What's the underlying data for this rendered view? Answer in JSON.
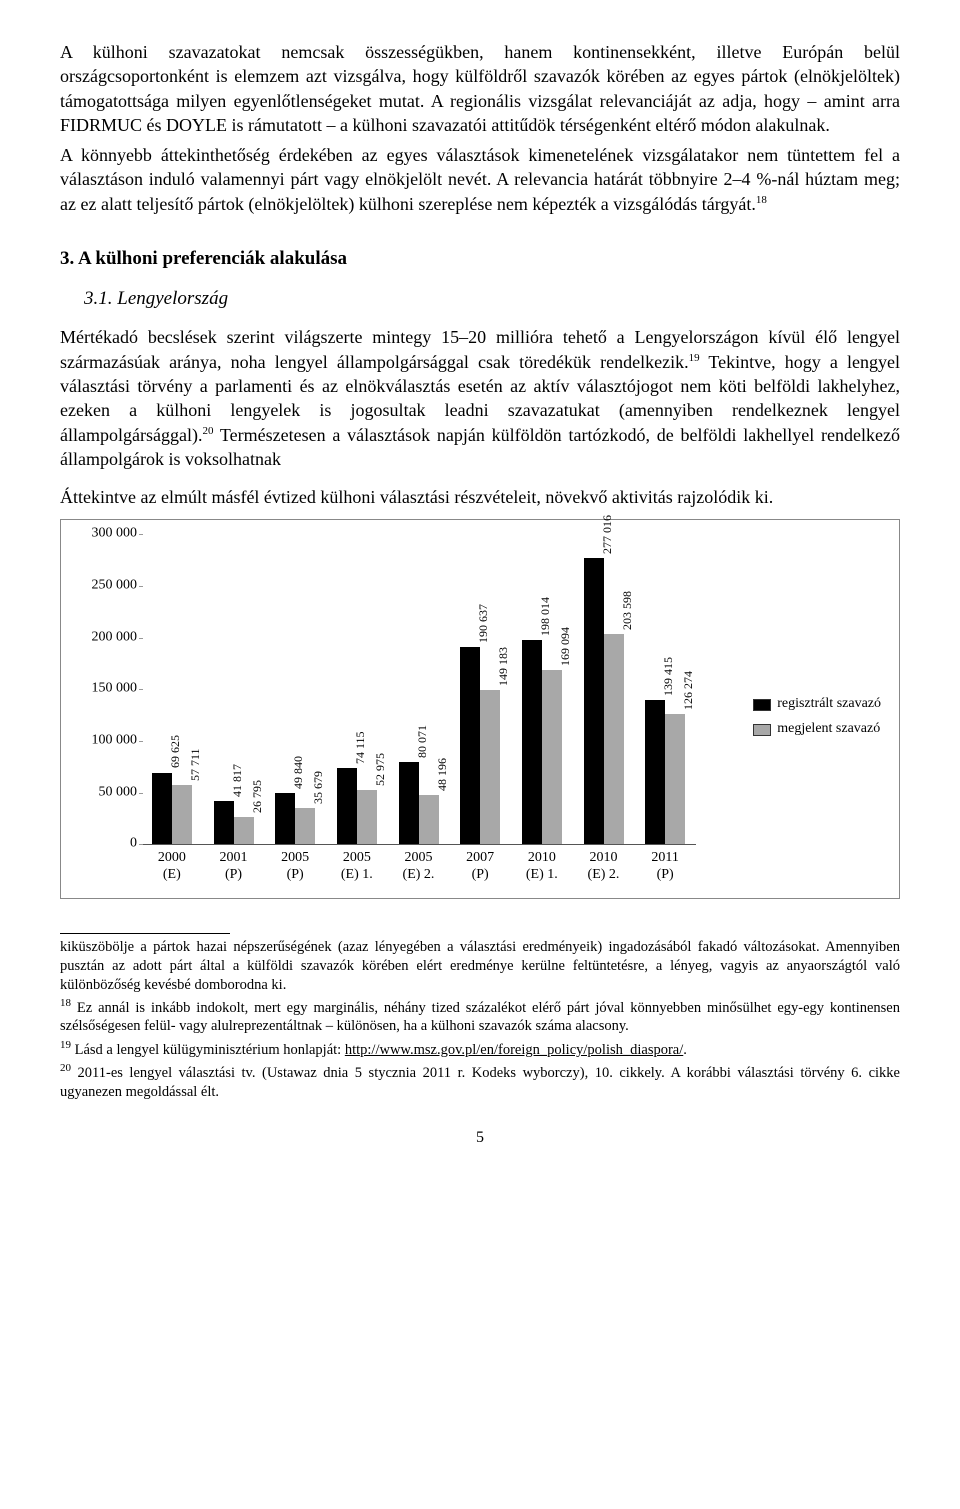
{
  "para1": "A külhoni szavazatokat nemcsak összességükben, hanem kontinensekként, illetve Európán belül országcsoportonként is elemzem azt vizsgálva, hogy külföldről szavazók körében az egyes pártok (elnökjelöltek) támogatottsága milyen egyenlőtlenségeket mutat. A regionális vizsgálat relevanciáját az adja, hogy – amint arra FIDRMUC és DOYLE is rámutatott – a külhoni szavazatói attitűdök térségenként eltérő módon alakulnak.",
  "para2_a": "A könnyebb áttekinthetőség érdekében az egyes választások kimenetelének vizsgálatakor nem tüntettem fel a választáson induló valamennyi párt vagy elnökjelölt nevét. A relevancia határát többnyire 2–4 %-nál húztam meg; az ez alatt teljesítő pártok (elnökjelöltek) külhoni szereplése nem képezték a vizsgálódás tárgyát.",
  "fn18_ref": "18",
  "h3": "3.  A külhoni preferenciák alakulása",
  "h4": "3.1. Lengyelország",
  "para3": "Mértékadó becslések szerint világszerte mintegy 15–20 millióra tehető a Lengyelországon kívül élő lengyel származásúak aránya, noha lengyel állampolgársággal csak töredékük rendelkezik.",
  "fn19_ref": "19",
  "para3b": " Tekintve, hogy a lengyel választási törvény a parlamenti és az elnökválasztás esetén az aktív választójogot nem köti belföldi lakhelyhez, ezeken a külhoni lengyelek is jogosultak leadni szavazatukat (amennyiben rendelkeznek lengyel állampolgársággal).",
  "fn20_ref": "20",
  "para3c": " Természetesen a választások napján külföldön tartózkodó, de belföldi lakhellyel rendelkező állampolgárok is voksolhatnak",
  "para4": "Áttekintve az elmúlt másfél évtized külhoni választási részvételeit, növekvő aktivitás rajzolódik ki.",
  "chart": {
    "y_ticks": [
      "0",
      "50 000",
      "100 000",
      "150 000",
      "200 000",
      "250 000",
      "300 000"
    ],
    "y_max": 300000,
    "categories": [
      "2000\n(E)",
      "2001\n(P)",
      "2005\n(P)",
      "2005\n(E) 1.",
      "2005\n(E) 2.",
      "2007\n(P)",
      "2010\n(E) 1.",
      "2010\n(E) 2.",
      "2011\n(P)"
    ],
    "series": [
      {
        "name": "regisztrált szavazó",
        "color": "#000000",
        "values": [
          69625,
          41817,
          49840,
          74115,
          80071,
          190637,
          198014,
          277016,
          139415
        ]
      },
      {
        "name": "megjelent szavazó",
        "color": "#a8a8a8",
        "values": [
          57711,
          26795,
          35679,
          52975,
          48196,
          149183,
          169094,
          203598,
          126274
        ]
      }
    ]
  },
  "footnotes": {
    "pre": "kiküszöbölje a pártok hazai népszerűségének (azaz lényegében a választási eredményeik) ingadozásából fakadó változásokat. Amennyiben pusztán az adott párt által a külföldi szavazók körében elért eredménye kerülne feltüntetésre, a lényeg, vagyis az anyaországtól való különbözőség kevésbé domborodna ki.",
    "f18": " Ez annál is inkább indokolt, mert egy marginális, néhány tized százalékot elérő párt jóval könnyebben minősülhet egy-egy kontinensen szélsőségesen felül- vagy alulreprezentáltnak – különösen, ha a külhoni szavazók száma alacsony.",
    "f19_a": " Lásd a lengyel külügyminisztérium honlapját: ",
    "f19_link": "http://www.msz.gov.pl/en/foreign_policy/polish_diaspora/",
    "f19_b": ".",
    "f20": " 2011-es lengyel választási tv. (Ustawaz dnia 5 stycznia 2011 r. Kodeks wyborczy), 10. cikkely. A korábbi választási törvény 6. cikke ugyanezen megoldással élt."
  },
  "page_num": "5"
}
